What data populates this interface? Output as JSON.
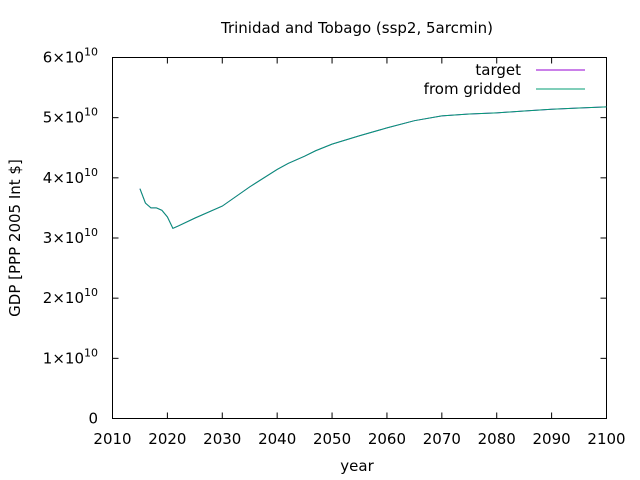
{
  "chart_data": {
    "type": "line",
    "title": "Trinidad and Tobago (ssp2, 5arcmin)",
    "xlabel": "year",
    "ylabel": "GDP [PPP 2005 Int $]",
    "xlim": [
      2010,
      2100
    ],
    "ylim": [
      0,
      60000000000
    ],
    "x_ticks": [
      2010,
      2020,
      2030,
      2040,
      2050,
      2060,
      2070,
      2080,
      2090,
      2100
    ],
    "y_ticks": [
      {
        "value": 0,
        "mantissa": "0",
        "exponent": ""
      },
      {
        "value": 10000000000,
        "mantissa": "1×10",
        "exponent": "10"
      },
      {
        "value": 20000000000,
        "mantissa": "2×10",
        "exponent": "10"
      },
      {
        "value": 30000000000,
        "mantissa": "3×10",
        "exponent": "10"
      },
      {
        "value": 40000000000,
        "mantissa": "4×10",
        "exponent": "10"
      },
      {
        "value": 50000000000,
        "mantissa": "5×10",
        "exponent": "10"
      },
      {
        "value": 60000000000,
        "mantissa": "6×10",
        "exponent": "10"
      }
    ],
    "grid": false,
    "legend_position": "top-right",
    "x": [
      2015,
      2016,
      2017,
      2018,
      2019,
      2020,
      2021,
      2022,
      2025,
      2030,
      2035,
      2040,
      2042,
      2045,
      2047,
      2050,
      2055,
      2060,
      2065,
      2070,
      2075,
      2080,
      2085,
      2090,
      2095,
      2100
    ],
    "series": [
      {
        "name": "target",
        "color": "#9400d3",
        "values": [
          38200000000,
          35800000000,
          35000000000,
          35000000000,
          34600000000,
          33500000000,
          31600000000,
          32000000000,
          33300000000,
          35300000000,
          38500000000,
          41400000000,
          42400000000,
          43600000000,
          44500000000,
          45600000000,
          47000000000,
          48300000000,
          49500000000,
          50300000000,
          50600000000,
          50800000000,
          51100000000,
          51400000000,
          51600000000,
          51800000000
        ]
      },
      {
        "name": "from gridded",
        "color": "#009e73",
        "values": [
          38200000000,
          35800000000,
          35000000000,
          35000000000,
          34600000000,
          33500000000,
          31600000000,
          32000000000,
          33300000000,
          35300000000,
          38500000000,
          41400000000,
          42400000000,
          43600000000,
          44500000000,
          45600000000,
          47000000000,
          48300000000,
          49500000000,
          50300000000,
          50600000000,
          50800000000,
          51100000000,
          51400000000,
          51600000000,
          51800000000
        ]
      }
    ]
  }
}
